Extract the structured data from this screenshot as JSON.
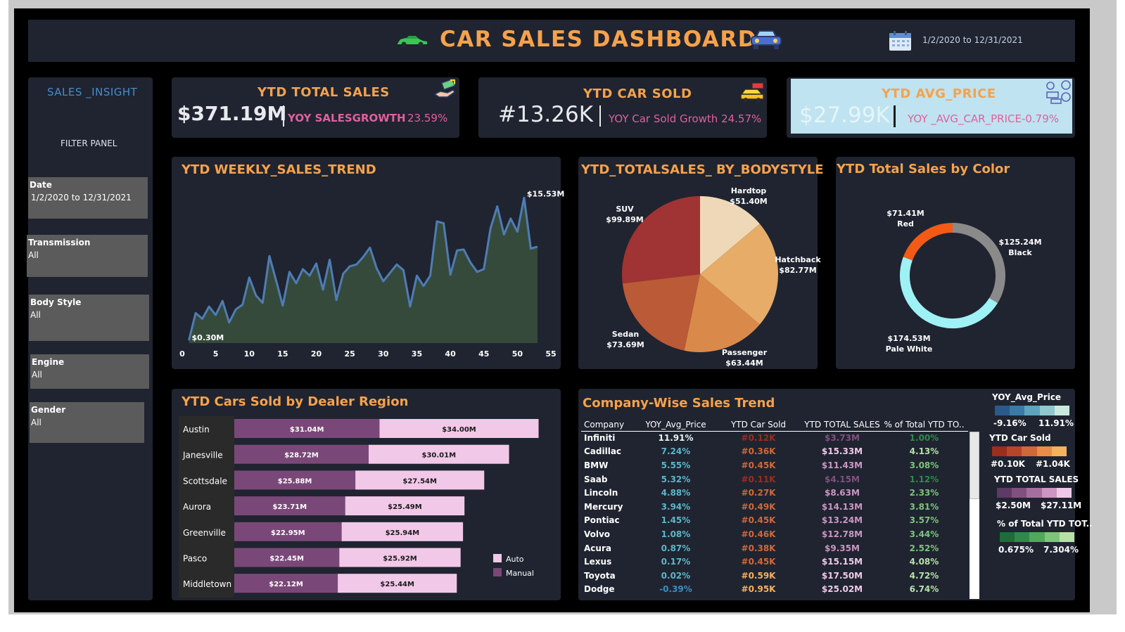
{
  "header": {
    "title": "CAR SALES DASHBOARD",
    "date_range": "1/2/2020 to 12/31/2021",
    "icons": [
      "car-icon",
      "car-front-icon",
      "calendar-icon"
    ]
  },
  "sidebar": {
    "title": "SALES _INSIGHT",
    "filter_panel": "FILTER PANEL",
    "filters": [
      {
        "label": "Date",
        "value": "1/2/2020 to 12/31/2021"
      },
      {
        "label": "Transmission",
        "value": "All"
      },
      {
        "label": "Body Style",
        "value": "All"
      },
      {
        "label": "Engine",
        "value": "All"
      },
      {
        "label": "Gender",
        "value": "All"
      }
    ]
  },
  "kpis": {
    "total_sales": {
      "title": "YTD TOTAL SALES",
      "value": "$371.19M",
      "sub_label": "YOY SALESGROWTH",
      "sub_value": "23.59%"
    },
    "car_sold": {
      "title": "YTD CAR SOLD",
      "value": "#13.26K",
      "sub": "YOY Car Sold Growth 24.57%"
    },
    "avg_price": {
      "title": "YTD AVG_PRICE",
      "value": "$27.99K",
      "sub": "YOY _AVG_CAR_PRICE-0.79%"
    }
  },
  "weekly_trend": {
    "title": "YTD WEEKLY_SALES_TREND",
    "min_label": "$0.30M",
    "max_label": "$15.53M"
  },
  "bodystyle": {
    "title": "YTD_TOTALSALES_ BY_BODYSTYLE",
    "slices": [
      {
        "name": "Hardtop",
        "value": "$51.40M"
      },
      {
        "name": "Hatchback",
        "value": "$82.77M"
      },
      {
        "name": "Passenger",
        "value": "$63.44M"
      },
      {
        "name": "Sedan",
        "value": "$73.69M"
      },
      {
        "name": "SUV",
        "value": "$99.89M"
      }
    ]
  },
  "color_chart": {
    "title": "YTD Total Sales by Color",
    "slices": [
      {
        "name": "Black",
        "value": "$125.24M"
      },
      {
        "name": "Pale White",
        "value": "$174.53M"
      },
      {
        "name": "Red",
        "value": "$71.41M"
      }
    ]
  },
  "region": {
    "title": "YTD Cars Sold by Dealer Region",
    "legend": [
      "Auto",
      "Manual"
    ]
  },
  "company": {
    "title": "Company-Wise Sales Trend",
    "columns": [
      "Company",
      "YOY_Avg_Price",
      "YTD Car Sold",
      "YTD TOTAL SALES",
      "% of Total YTD TO.."
    ],
    "rows": [
      [
        "Infiniti",
        "11.91%",
        "#0.12K",
        "$3.73M",
        "1.00%"
      ],
      [
        "Cadillac",
        "7.24%",
        "#0.36K",
        "$15.33M",
        "4.13%"
      ],
      [
        "BMW",
        "5.55%",
        "#0.45K",
        "$11.43M",
        "3.08%"
      ],
      [
        "Saab",
        "5.32%",
        "#0.11K",
        "$4.15M",
        "1.12%"
      ],
      [
        "Lincoln",
        "4.88%",
        "#0.27K",
        "$8.63M",
        "2.33%"
      ],
      [
        "Mercury",
        "3.94%",
        "#0.49K",
        "$14.13M",
        "3.81%"
      ],
      [
        "Pontiac",
        "1.45%",
        "#0.45K",
        "$13.24M",
        "3.57%"
      ],
      [
        "Volvo",
        "1.08%",
        "#0.46K",
        "$12.78M",
        "3.44%"
      ],
      [
        "Acura",
        "0.87%",
        "#0.38K",
        "$9.35M",
        "2.52%"
      ],
      [
        "Lexus",
        "0.17%",
        "#0.45K",
        "$15.15M",
        "4.08%"
      ],
      [
        "Toyota",
        "0.02%",
        "#0.59K",
        "$17.50M",
        "4.72%"
      ],
      [
        "Dodge",
        "-0.39%",
        "#0.95K",
        "$25.02M",
        "6.74%"
      ]
    ],
    "legends": [
      {
        "title": "YOY_Avg_Price",
        "min": "-9.16%",
        "max": "11.91%",
        "colors": [
          "#2a5a8a",
          "#3b79a8",
          "#5ea4bf",
          "#8fc8cf",
          "#c9e9df"
        ]
      },
      {
        "title": "YTD Car Sold",
        "min": "#0.10K",
        "max": "#1.04K",
        "colors": [
          "#9a2e1f",
          "#b8452a",
          "#d0683a",
          "#e98d49",
          "#f4b25e"
        ]
      },
      {
        "title": "YTD TOTAL SALES",
        "min": "$2.50M",
        "max": "$27.11M",
        "colors": [
          "#5f3a66",
          "#81507f",
          "#a66e9e",
          "#cb96c2",
          "#f0c9e8"
        ]
      },
      {
        "title": "% of Total YTD TOT..",
        "min": "0.675%",
        "max": "7.304%",
        "colors": [
          "#1f6b3a",
          "#2f8a4a",
          "#4fa85e",
          "#7ec47d",
          "#b6e0a8"
        ]
      }
    ]
  },
  "chart_data": [
    {
      "type": "area",
      "title": "YTD WEEKLY_SALES_TREND",
      "x": [
        1,
        2,
        3,
        4,
        5,
        6,
        7,
        8,
        9,
        10,
        11,
        12,
        13,
        14,
        15,
        16,
        17,
        18,
        19,
        20,
        21,
        22,
        23,
        24,
        25,
        26,
        27,
        28,
        29,
        30,
        31,
        32,
        33,
        34,
        35,
        36,
        37,
        38,
        39,
        40,
        41,
        42,
        43,
        44,
        45,
        46,
        47,
        48,
        49,
        50,
        51,
        52,
        53
      ],
      "values": [
        0.3,
        3.2,
        2.6,
        3.9,
        3.0,
        4.5,
        2.2,
        3.6,
        4.1,
        7.0,
        5.1,
        4.3,
        9.3,
        6.7,
        4.0,
        7.6,
        6.4,
        7.9,
        7.2,
        8.5,
        5.7,
        8.9,
        4.6,
        7.4,
        8.2,
        8.4,
        9.2,
        10.2,
        8.0,
        6.6,
        7.5,
        8.4,
        7.8,
        3.9,
        7.2,
        6.1,
        7.2,
        13.0,
        12.8,
        7.3,
        9.9,
        10.0,
        8.6,
        7.6,
        7.9,
        12.3,
        14.6,
        11.6,
        13.3,
        11.9,
        15.53,
        10.1,
        10.3
      ],
      "xlim": [
        0,
        55
      ],
      "xticks": [
        0,
        5,
        10,
        15,
        20,
        25,
        30,
        35,
        40,
        45,
        50,
        55
      ],
      "color": "#4f7cb3",
      "fill": "#364a3c"
    },
    {
      "type": "pie",
      "title": "YTD_TOTALSALES_ BY_BODYSTYLE",
      "categories": [
        "Hardtop",
        "Hatchback",
        "Passenger",
        "Sedan",
        "SUV"
      ],
      "values": [
        51.4,
        82.77,
        63.44,
        73.69,
        99.89
      ],
      "colors": [
        "#efd8b8",
        "#e6ac68",
        "#d98a4a",
        "#bb5a36",
        "#a03333"
      ]
    },
    {
      "type": "pie",
      "title": "YTD Total Sales by Color",
      "categories": [
        "Black",
        "Pale White",
        "Red"
      ],
      "values": [
        125.24,
        174.53,
        71.41
      ],
      "colors": [
        "#8a8a8a",
        "#9ef1f4",
        "#f25a15"
      ]
    },
    {
      "type": "bar",
      "title": "YTD Cars Sold by Dealer Region",
      "categories": [
        "Austin",
        "Janesville",
        "Scottsdale",
        "Aurora",
        "Greenville",
        "Pasco",
        "Middletown"
      ],
      "series": [
        {
          "name": "Manual",
          "values": [
            31.04,
            28.72,
            25.88,
            23.71,
            22.95,
            22.45,
            22.12
          ],
          "labels": [
            "$31.04M",
            "$28.72M",
            "$25.88M",
            "$23.71M",
            "$22.95M",
            "$22.45M",
            "$22.12M"
          ],
          "color": "#7a4878"
        },
        {
          "name": "Auto",
          "values": [
            34.0,
            30.01,
            27.54,
            25.49,
            25.94,
            25.92,
            25.44
          ],
          "labels": [
            "$34.00M",
            "$30.01M",
            "$27.54M",
            "$25.49M",
            "$25.94M",
            "$25.92M",
            "$25.44M"
          ],
          "color": "#f2c8e8"
        }
      ]
    }
  ]
}
